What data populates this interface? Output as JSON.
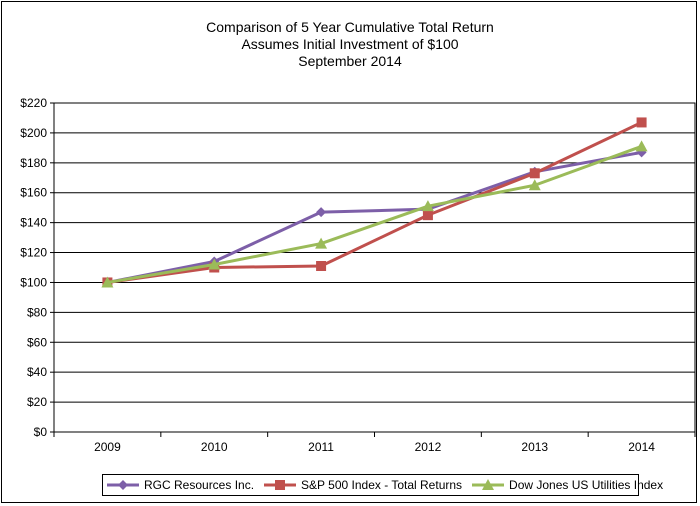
{
  "chart_data": {
    "type": "line",
    "title": [
      "Comparison of 5 Year Cumulative Total Return",
      "Assumes Initial Investment of $100",
      "September 2014"
    ],
    "categories": [
      "2009",
      "2010",
      "2011",
      "2012",
      "2013",
      "2014"
    ],
    "ylim": [
      0,
      220
    ],
    "yticks": [
      0,
      20,
      40,
      60,
      80,
      100,
      120,
      140,
      160,
      180,
      200,
      220
    ],
    "ytick_labels": [
      "$0",
      "$20",
      "$40",
      "$60",
      "$80",
      "$100",
      "$120",
      "$140",
      "$160",
      "$180",
      "$200",
      "$220"
    ],
    "grid": true,
    "legend_placement": "bottom",
    "series": [
      {
        "name": "RGC Resources Inc.",
        "values": [
          100,
          114,
          147,
          149,
          174,
          187
        ],
        "color": "#7d5fa8",
        "marker": "diamond"
      },
      {
        "name": "S&P 500 Index - Total Returns",
        "values": [
          100,
          110,
          111,
          145,
          173,
          207
        ],
        "color": "#c0504d",
        "marker": "square"
      },
      {
        "name": "Dow Jones US Utilities Index",
        "values": [
          100,
          112,
          126,
          151,
          165,
          191
        ],
        "color": "#9bbb59",
        "marker": "triangle"
      }
    ]
  }
}
